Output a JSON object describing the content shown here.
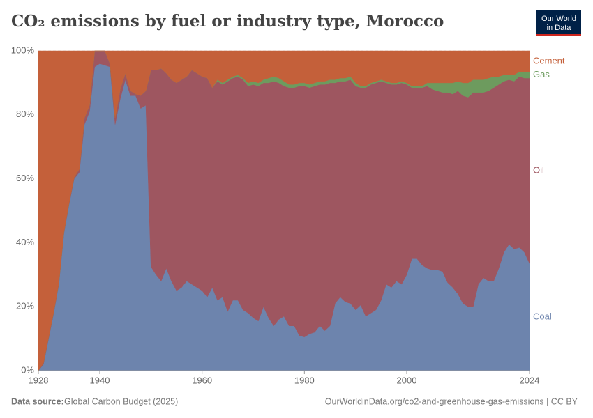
{
  "chart_data": {
    "type": "stacked_area",
    "title": "CO₂ emissions by fuel or industry type, Morocco",
    "logo": [
      "Our World",
      "in Data"
    ],
    "source_label": "Data source:",
    "source": "Global Carbon Budget (2025)",
    "url": "OurWorldinData.org/co2-and-greenhouse-gas-emissions | CC BY",
    "x": [
      1928,
      1929,
      1930,
      1931,
      1932,
      1933,
      1934,
      1935,
      1936,
      1937,
      1938,
      1939,
      1940,
      1941,
      1942,
      1943,
      1944,
      1945,
      1946,
      1947,
      1948,
      1949,
      1950,
      1951,
      1952,
      1953,
      1954,
      1955,
      1956,
      1957,
      1958,
      1959,
      1960,
      1961,
      1962,
      1963,
      1964,
      1965,
      1966,
      1967,
      1968,
      1969,
      1970,
      1971,
      1972,
      1973,
      1974,
      1975,
      1976,
      1977,
      1978,
      1979,
      1980,
      1981,
      1982,
      1983,
      1984,
      1985,
      1986,
      1987,
      1988,
      1989,
      1990,
      1991,
      1992,
      1993,
      1994,
      1995,
      1996,
      1997,
      1998,
      1999,
      2000,
      2001,
      2002,
      2003,
      2004,
      2005,
      2006,
      2007,
      2008,
      2009,
      2010,
      2011,
      2012,
      2013,
      2014,
      2015,
      2016,
      2017,
      2018,
      2019,
      2020,
      2021,
      2022,
      2023,
      2024
    ],
    "series": [
      {
        "name": "Coal",
        "color": "#6d84ad",
        "values": [
          0,
          2,
          10,
          18,
          27,
          43,
          52,
          60,
          62,
          77,
          81,
          95,
          96,
          95.5,
          95,
          77,
          85,
          91,
          86,
          86,
          82,
          83,
          32.5,
          30,
          28,
          32,
          28,
          25,
          26,
          28,
          27,
          26,
          25,
          23,
          26,
          22,
          23,
          18.5,
          22,
          22,
          19,
          18,
          16.5,
          15.5,
          20,
          16.5,
          14,
          16,
          17,
          14,
          14,
          11,
          10.5,
          11.5,
          12,
          14,
          12.5,
          14,
          21,
          23,
          21.5,
          21,
          19,
          20.5,
          17,
          18,
          19,
          22,
          27,
          26,
          28,
          27,
          30,
          35,
          35,
          33,
          32,
          31.5,
          31.5,
          31,
          27.5,
          26,
          24,
          21,
          20,
          20,
          27,
          29,
          28,
          28,
          32,
          37,
          39.5,
          38,
          38.5,
          37,
          33.5
        ]
      },
      {
        "name": "Oil",
        "color": "#9e5660",
        "values": [
          0,
          0.5,
          0.5,
          0.5,
          0.5,
          0.5,
          0.5,
          0.5,
          1,
          2,
          2,
          5,
          4,
          4.5,
          1,
          2,
          3,
          2,
          1.5,
          0.5,
          4,
          4.5,
          61.5,
          64,
          66.5,
          61,
          63,
          65,
          65,
          64,
          67,
          67,
          67,
          68.5,
          62.5,
          68.5,
          66.5,
          72,
          69.5,
          70,
          72,
          71,
          73,
          73.5,
          70,
          73.5,
          76.5,
          74,
          72,
          74.5,
          74.5,
          78,
          78.5,
          77,
          77,
          75.5,
          77,
          76,
          69,
          67.5,
          69,
          70,
          70,
          68,
          71.5,
          71.5,
          71,
          68.5,
          63,
          63.5,
          61.5,
          63,
          59.5,
          53.5,
          53.5,
          55.5,
          57,
          56.5,
          56,
          56,
          59.5,
          60.5,
          63.5,
          65,
          65.5,
          67,
          60,
          58,
          59.5,
          60.5,
          57.5,
          53.5,
          51.5,
          52.5,
          53.5,
          54.5,
          58
        ]
      },
      {
        "name": "Gas",
        "color": "#6d9b5e",
        "values": [
          0,
          0,
          0,
          0,
          0,
          0,
          0,
          0,
          0,
          0,
          0,
          0,
          0,
          0,
          0,
          0,
          0,
          0,
          0,
          0,
          0,
          0,
          0,
          0,
          0,
          0,
          0,
          0,
          0,
          0,
          0,
          0,
          0,
          0,
          0,
          0.5,
          0.5,
          0.5,
          0.5,
          0.5,
          0.5,
          1,
          1,
          1,
          1,
          1.5,
          1.5,
          1.5,
          1.5,
          1,
          1,
          1,
          1,
          1,
          1,
          1,
          1,
          1,
          1,
          1,
          1,
          1,
          1,
          0.5,
          0.5,
          0.5,
          0.5,
          0.5,
          0.5,
          0.5,
          0.5,
          0.5,
          0.5,
          0.5,
          0.5,
          0.5,
          1,
          2,
          2.5,
          3,
          3,
          3.5,
          3,
          4,
          4.5,
          4,
          4,
          4,
          4,
          3.5,
          2.5,
          2,
          1.5,
          2,
          1.5,
          2,
          2
        ]
      },
      {
        "name": "Cement",
        "color": "#c4603a",
        "values": [
          100,
          97.5,
          89.5,
          81.5,
          72.5,
          56.5,
          47.5,
          39.5,
          37,
          21,
          17,
          0,
          0,
          0,
          4,
          21,
          12,
          7,
          12.5,
          13.5,
          14,
          12.5,
          6,
          6,
          5.5,
          7,
          9,
          10,
          9,
          8,
          6,
          7,
          8,
          8.5,
          11.5,
          9,
          10,
          9,
          8,
          7.5,
          8.5,
          10,
          9.5,
          10,
          9,
          8.5,
          8,
          8.5,
          9.5,
          10.5,
          10.5,
          10,
          10,
          10.5,
          10,
          9.5,
          9.5,
          9,
          9,
          8.5,
          8.5,
          8,
          10,
          11,
          11,
          10,
          9.5,
          9,
          9.5,
          10,
          10,
          9.5,
          10,
          11,
          11,
          11,
          10,
          10,
          10,
          10,
          10,
          10,
          9.5,
          10,
          10,
          9,
          9,
          9,
          8.5,
          8,
          8,
          7.5,
          7.5,
          7.5,
          6.5,
          6.5,
          6.5
        ]
      }
    ],
    "xlim": [
      1928,
      2024
    ],
    "xticks": [
      1928,
      1940,
      1960,
      1980,
      2000,
      2024
    ],
    "ylim": [
      0,
      100
    ],
    "yticks": [
      {
        "value": 0,
        "label": "0%"
      },
      {
        "value": 20,
        "label": "20%"
      },
      {
        "value": 40,
        "label": "40%"
      },
      {
        "value": 60,
        "label": "60%"
      },
      {
        "value": 80,
        "label": "80%"
      },
      {
        "value": 100,
        "label": "100%"
      }
    ],
    "grid": true
  }
}
